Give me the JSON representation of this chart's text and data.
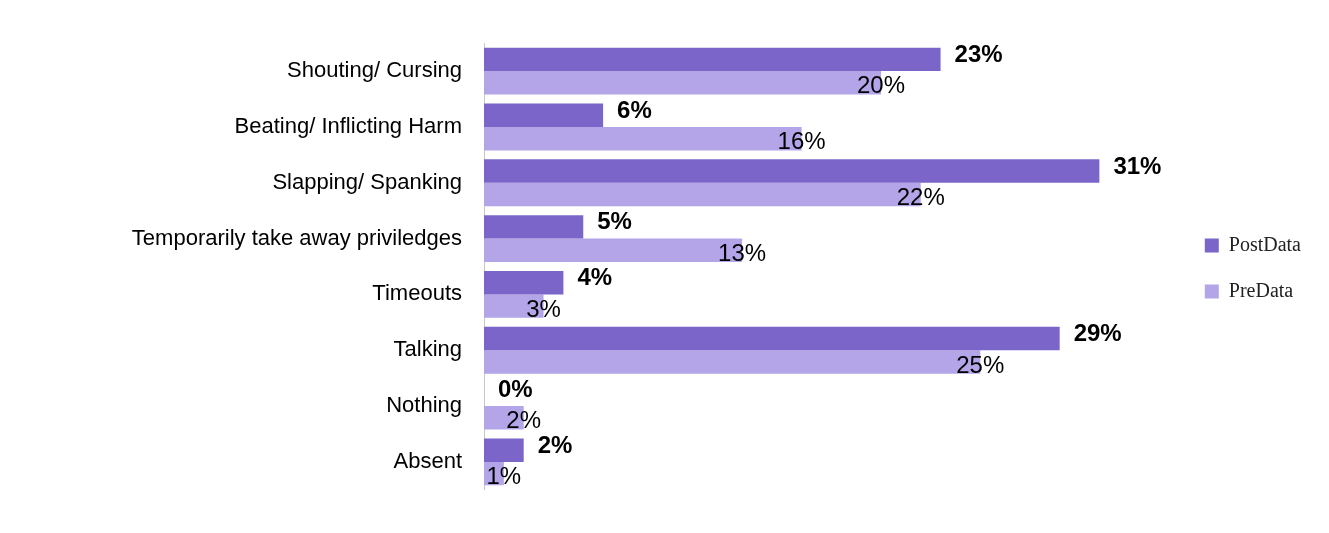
{
  "chart_data": {
    "type": "bar",
    "orientation": "horizontal",
    "categories": [
      "Shouting/ Cursing",
      "Beating/ Inflicting Harm",
      "Slapping/ Spanking",
      "Temporarily take away priviledges",
      "Timeouts",
      "Talking",
      "Nothing",
      "Absent"
    ],
    "series": [
      {
        "name": "PostData",
        "color": "#7b65c8",
        "values": [
          23,
          6,
          31,
          5,
          4,
          29,
          0,
          2
        ],
        "value_labels": [
          "23%",
          "6%",
          "31%",
          "5%",
          "4%",
          "29%",
          "0%",
          "2%"
        ]
      },
      {
        "name": "PreData",
        "color": "#b3a5e8",
        "values": [
          20,
          16,
          22,
          13,
          3,
          25,
          2,
          1
        ],
        "value_labels": [
          "20%",
          "16%",
          "22%",
          "13%",
          "3%",
          "25%",
          "2%",
          "1%"
        ]
      }
    ],
    "grid": false,
    "legend": "right",
    "tick_labels": "y"
  }
}
